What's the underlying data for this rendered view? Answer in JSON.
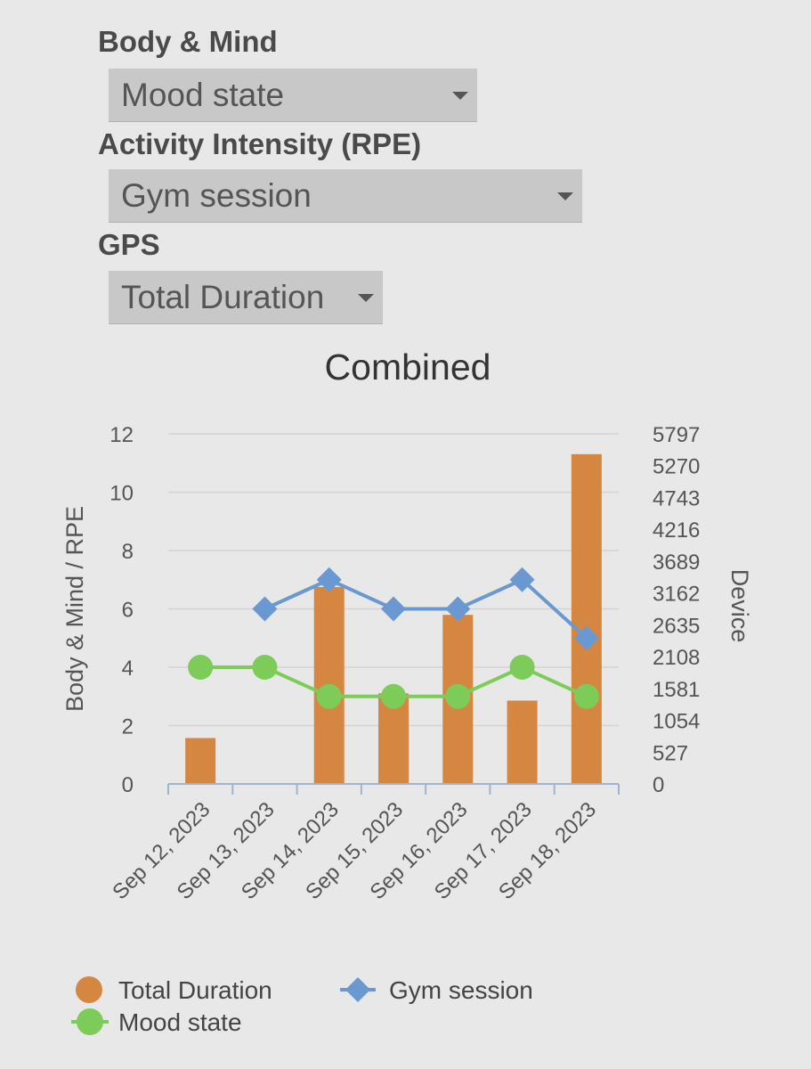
{
  "controls": {
    "body_mind": {
      "label": "Body & Mind",
      "selected": "Mood state"
    },
    "activity": {
      "label": "Activity Intensity (RPE)",
      "selected": "Gym session"
    },
    "gps": {
      "label": "GPS",
      "selected": "Total Duration"
    }
  },
  "colors": {
    "bar": "#d58741",
    "gym": "#6a98d0",
    "mood": "#7dcc5a",
    "grid": "#d3d3d3",
    "axis": "#9fb3cf"
  },
  "chart_data": {
    "type": "bar",
    "title": "Combined",
    "categories": [
      "Sep 12, 2023",
      "Sep 13, 2023",
      "Sep 14, 2023",
      "Sep 15, 2023",
      "Sep 16, 2023",
      "Sep 17, 2023",
      "Sep 18, 2023"
    ],
    "ylabel_left": "Body & Mind / RPE",
    "ylabel_right": "Device",
    "ylim_left": [
      0,
      12
    ],
    "ylim_right": [
      0,
      5797
    ],
    "yticks_left": [
      "0",
      "2",
      "4",
      "6",
      "8",
      "10",
      "12"
    ],
    "yticks_right": [
      "0",
      "527",
      "1054",
      "1581",
      "2108",
      "2635",
      "3162",
      "3689",
      "4216",
      "4743",
      "5270",
      "5797"
    ],
    "series": [
      {
        "name": "Total Duration",
        "type": "bar",
        "axis": "right",
        "values": [
          760,
          0,
          3260,
          1500,
          2800,
          1380,
          5460
        ]
      },
      {
        "name": "Gym session",
        "type": "line",
        "marker": "diamond",
        "axis": "left",
        "values": [
          null,
          6,
          7,
          6,
          6,
          7,
          5
        ]
      },
      {
        "name": "Mood state",
        "type": "line",
        "marker": "circle",
        "axis": "left",
        "values": [
          4,
          4,
          3,
          3,
          3,
          4,
          3
        ]
      }
    ]
  }
}
